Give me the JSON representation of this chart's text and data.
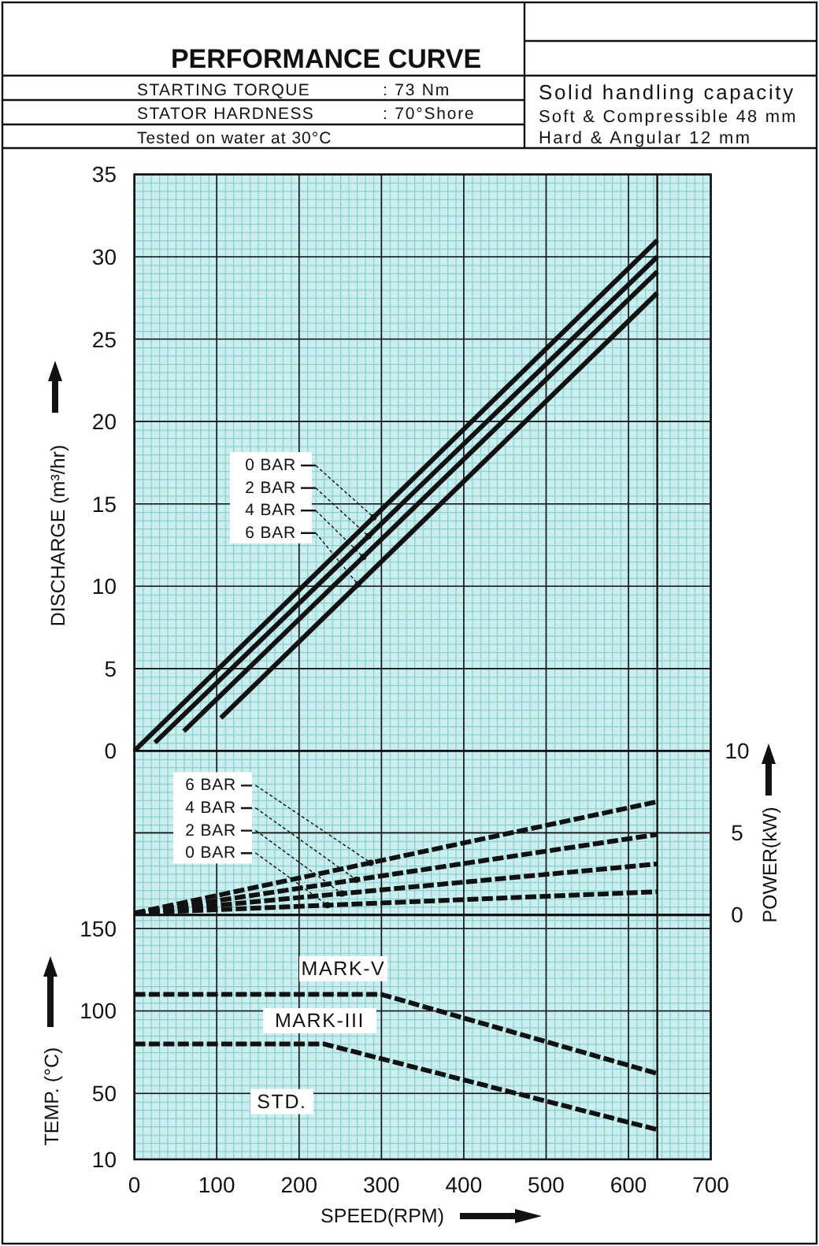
{
  "chart_data": [
    {
      "type": "line",
      "title": "PERFORMANCE CURVE",
      "annotations": [
        "STARTING TORQUE",
        ": 73 Nm",
        "STATOR HARDNESS",
        ": 70°Shore",
        "Tested on water at 30°C",
        "Solid handling capacity",
        "Soft & Compressible 48 mm",
        "Hard & Angular 12 mm"
      ],
      "ylabel": "DISCHARGE (m³/hr)",
      "xlim": [
        0,
        700
      ],
      "xticks": [
        0,
        100,
        200,
        300,
        400,
        500,
        600,
        700
      ],
      "ylim": [
        0,
        35
      ],
      "yticks": [
        0,
        5,
        10,
        15,
        20,
        25,
        30,
        35
      ],
      "grid": true,
      "tick_labels": "y",
      "legend": "left",
      "line_style": "solid",
      "ref_lines": [
        {
          "axis": "x",
          "value": 635,
          "color": "#111111"
        }
      ],
      "series": [
        {
          "name": "0 BAR",
          "color": "#111111",
          "x": [
            0,
            635
          ],
          "values": [
            0,
            31
          ]
        },
        {
          "name": "2 BAR",
          "color": "#111111",
          "x": [
            25,
            635
          ],
          "values": [
            0.5,
            30
          ]
        },
        {
          "name": "4 BAR",
          "color": "#111111",
          "x": [
            60,
            635
          ],
          "values": [
            1.2,
            29.1
          ]
        },
        {
          "name": "6 BAR",
          "color": "#111111",
          "x": [
            105,
            635
          ],
          "values": [
            2,
            27.8
          ]
        }
      ]
    },
    {
      "type": "line",
      "y2label": "POWER(kW)",
      "xlim": [
        0,
        700
      ],
      "xticks": [
        0,
        100,
        200,
        300,
        400,
        500,
        600,
        700
      ],
      "y2lim": [
        0,
        10
      ],
      "y2ticks": [
        0,
        5,
        10
      ],
      "grid": true,
      "tick_labels": "y",
      "legend": "top left",
      "line_style": "dashed",
      "ref_lines": [
        {
          "axis": "x",
          "value": 635,
          "color": "#111111"
        }
      ],
      "series": [
        {
          "name": "6 BAR",
          "color": "#111111",
          "axis": "y2",
          "x": [
            0,
            635
          ],
          "values": [
            0.1,
            6.9
          ]
        },
        {
          "name": "4 BAR",
          "color": "#111111",
          "axis": "y2",
          "x": [
            0,
            635
          ],
          "values": [
            0.1,
            4.9
          ]
        },
        {
          "name": "2 BAR",
          "color": "#111111",
          "axis": "y2",
          "x": [
            0,
            635
          ],
          "values": [
            0.1,
            3.1
          ]
        },
        {
          "name": "0 BAR",
          "color": "#111111",
          "axis": "y2",
          "x": [
            0,
            635
          ],
          "values": [
            0.1,
            1.4
          ]
        }
      ]
    },
    {
      "type": "line",
      "xlabel": "SPEED(RPM)",
      "ylabel": "TEMP. (°C)",
      "xlim": [
        0,
        700
      ],
      "xticks": [
        0,
        100,
        200,
        300,
        400,
        500,
        600,
        700
      ],
      "ylim": [
        10,
        158
      ],
      "yticks": [
        10,
        50,
        100,
        150
      ],
      "grid": true,
      "line_style": "dashed",
      "ref_lines": [
        {
          "axis": "x",
          "value": 635,
          "color": "#111111"
        }
      ],
      "annotations": [
        "MARK-V",
        "MARK-III",
        "STD."
      ],
      "series": [
        {
          "color": "#111111",
          "x": [
            0,
            300,
            635
          ],
          "values": [
            110,
            110,
            62
          ]
        },
        {
          "color": "#111111",
          "x": [
            0,
            230,
            635
          ],
          "values": [
            80,
            80,
            28
          ]
        }
      ]
    }
  ]
}
